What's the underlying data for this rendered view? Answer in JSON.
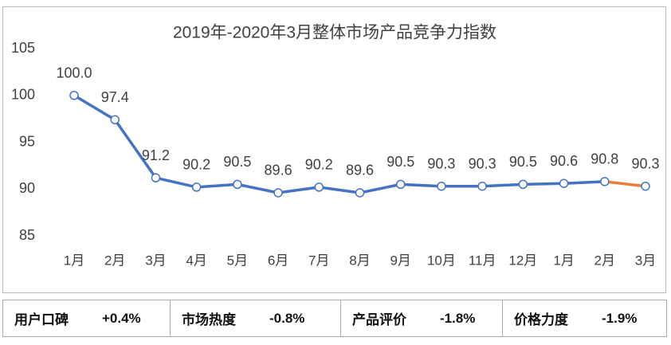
{
  "chart_data": {
    "type": "line",
    "title": "2019年-2020年3月整体市场产品竞争力指数",
    "categories": [
      "1月",
      "2月",
      "3月",
      "4月",
      "5月",
      "6月",
      "7月",
      "8月",
      "9月",
      "10月",
      "11月",
      "12月",
      "1月",
      "2月",
      "3月"
    ],
    "series": [
      {
        "color": "#4472c4",
        "values": [
          100.0,
          97.4,
          91.2,
          90.2,
          90.5,
          89.6,
          90.2,
          89.6,
          90.5,
          90.3,
          90.3,
          90.5,
          90.6,
          90.8,
          90.3
        ],
        "value_labels": [
          "100.0",
          "97.4",
          "91.2",
          "90.2",
          "90.5",
          "89.6",
          "90.2",
          "89.6",
          "90.5",
          "90.3",
          "90.3",
          "90.5",
          "90.6",
          "90.8",
          "90.3"
        ]
      }
    ],
    "last_segment_color": "#ed7d31",
    "ylim": [
      85,
      105
    ],
    "yticks": [
      85,
      90,
      95,
      100,
      105
    ],
    "grid": false
  },
  "summary": [
    {
      "label": "用户口碑",
      "value": "+0.4%"
    },
    {
      "label": "市场热度",
      "value": "-0.8%"
    },
    {
      "label": "产品评价",
      "value": "-1.8%"
    },
    {
      "label": "价格力度",
      "value": "-1.9%"
    }
  ]
}
